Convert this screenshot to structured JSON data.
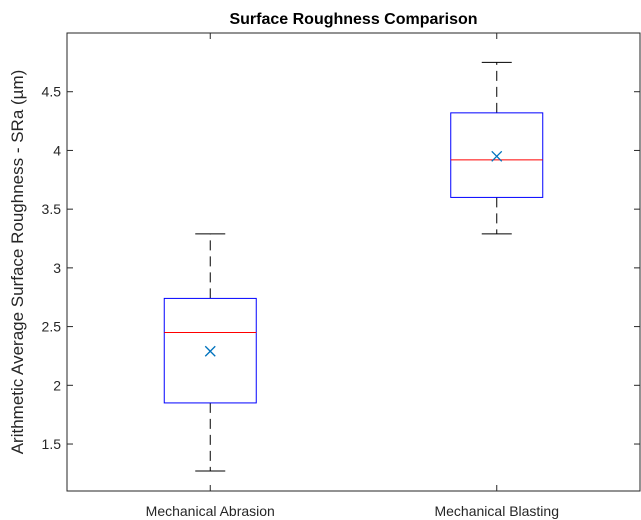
{
  "chart_data": {
    "type": "box",
    "title": "Surface Roughness Comparison",
    "xlabel": "",
    "ylabel": "Arithmetic Average Surface Roughness - SRa (µm)",
    "ylim": [
      1.1,
      5.0
    ],
    "yticks": [
      1.5,
      2,
      2.5,
      3,
      3.5,
      4,
      4.5
    ],
    "ytick_labels": [
      "1.5",
      "2",
      "2.5",
      "3",
      "3.5",
      "4",
      "4.5"
    ],
    "categories": [
      "Mechanical Abrasion",
      "Mechanical Blasting"
    ],
    "boxes": [
      {
        "category": "Mechanical Abrasion",
        "min": 1.27,
        "q1": 1.85,
        "median": 2.45,
        "q3": 2.74,
        "max": 3.29,
        "mean": 2.29
      },
      {
        "category": "Mechanical Blasting",
        "min": 3.29,
        "q1": 3.6,
        "median": 3.92,
        "q3": 4.32,
        "max": 4.75,
        "mean": 3.95
      }
    ],
    "grid": false,
    "legend": "none",
    "colors": {
      "box": "#0000ff",
      "median": "#ff0000",
      "whisker": "#000000",
      "mean_marker": "#0072bd",
      "axis": "#262626"
    }
  }
}
